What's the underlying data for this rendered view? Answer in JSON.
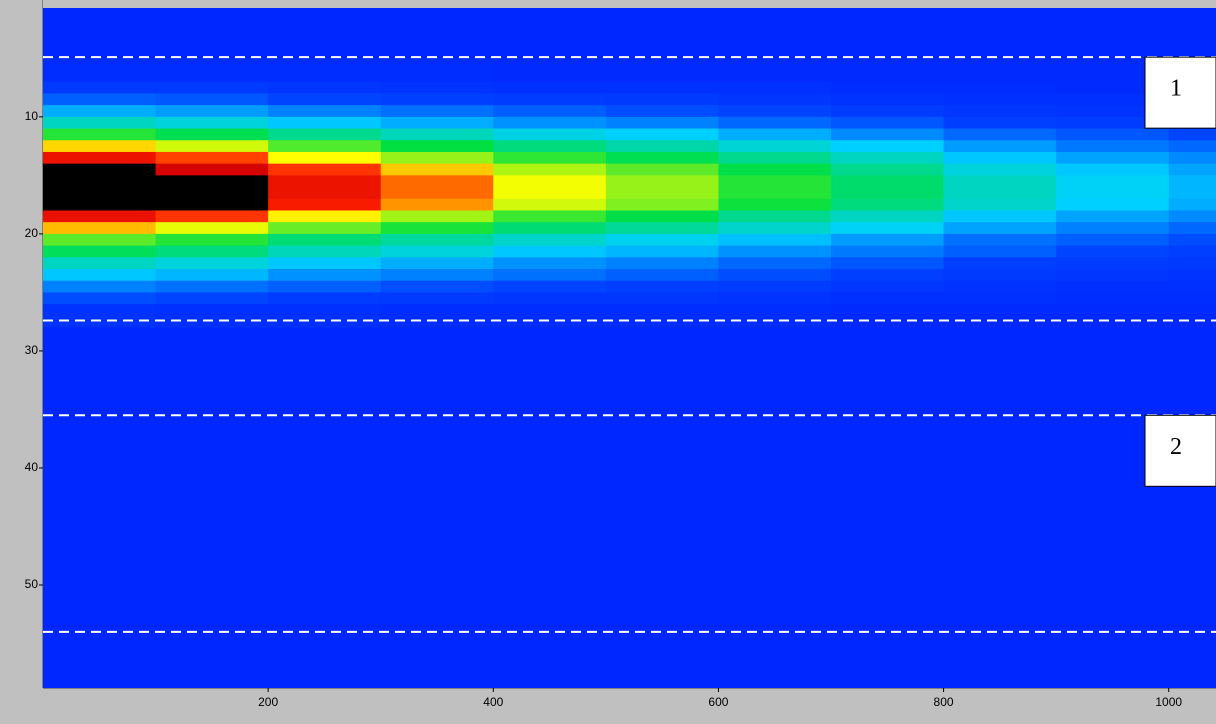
{
  "chart_data": {
    "type": "heatmap",
    "x_bins": [
      0,
      100,
      200,
      300,
      400,
      500,
      600,
      700,
      800,
      900,
      1000,
      1042
    ],
    "y_bins": [
      0.7,
      5,
      7,
      8,
      9,
      10,
      11,
      12,
      13,
      14,
      15,
      16,
      17,
      18,
      19,
      20,
      21,
      22,
      23,
      24,
      25,
      26,
      28,
      58.8
    ],
    "z": [
      [
        8,
        8,
        8,
        8,
        8,
        8,
        8,
        8,
        8,
        8,
        8
      ],
      [
        10,
        10,
        10,
        10,
        9,
        9,
        9,
        9,
        9,
        9,
        8
      ],
      [
        14,
        14,
        13,
        12,
        11,
        11,
        11,
        10,
        10,
        9,
        9
      ],
      [
        20,
        19,
        17,
        16,
        15,
        14,
        13,
        12,
        11,
        11,
        10
      ],
      [
        29,
        27,
        24,
        22,
        20,
        18,
        17,
        15,
        13,
        12,
        12
      ],
      [
        40,
        37,
        32,
        29,
        26,
        24,
        21,
        19,
        16,
        15,
        14
      ],
      [
        58,
        53,
        46,
        41,
        36,
        33,
        29,
        25,
        21,
        19,
        17
      ],
      [
        80,
        73,
        62,
        55,
        48,
        43,
        38,
        33,
        27,
        23,
        21
      ],
      [
        100,
        91,
        77,
        68,
        59,
        53,
        46,
        40,
        32,
        28,
        25
      ],
      [
        119,
        108,
        92,
        81,
        70,
        63,
        54,
        46,
        37,
        32,
        28
      ],
      [
        130,
        118,
        100,
        88,
        76,
        68,
        58,
        50,
        40,
        34,
        30
      ],
      [
        130,
        118,
        100,
        88,
        76,
        68,
        58,
        50,
        40,
        34,
        30
      ],
      [
        125,
        114,
        96,
        85,
        73,
        66,
        56,
        48,
        39,
        33,
        29
      ],
      [
        101,
        92,
        78,
        69,
        60,
        54,
        46,
        40,
        32,
        28,
        25
      ],
      [
        82,
        75,
        64,
        57,
        49,
        45,
        39,
        34,
        28,
        24,
        21
      ],
      [
        63,
        58,
        49,
        44,
        39,
        35,
        31,
        27,
        22,
        20,
        18
      ],
      [
        52,
        48,
        41,
        37,
        32,
        30,
        26,
        23,
        20,
        17,
        16
      ],
      [
        40,
        37,
        32,
        29,
        26,
        24,
        21,
        19,
        16,
        15,
        14
      ],
      [
        32,
        30,
        26,
        24,
        22,
        20,
        18,
        16,
        14,
        13,
        12
      ],
      [
        24,
        22,
        20,
        18,
        17,
        16,
        15,
        13,
        12,
        11,
        11
      ],
      [
        18,
        17,
        15,
        14,
        13,
        13,
        12,
        11,
        11,
        10,
        10
      ],
      [
        12,
        11,
        11,
        10,
        10,
        10,
        10,
        9,
        9,
        9,
        9
      ],
      [
        8,
        8,
        8,
        8,
        8,
        8,
        8,
        8,
        8,
        8,
        8
      ]
    ],
    "zlim": [
      0,
      110
    ],
    "xlim": [
      0,
      1042
    ],
    "ylim": [
      0.7,
      58.8
    ],
    "y_inverted": true,
    "xticks": [
      200,
      400,
      600,
      800,
      1000
    ],
    "yticks": [
      10,
      20,
      30,
      40,
      50
    ],
    "hlines": [
      4.9,
      27.4,
      35.5,
      54.0
    ],
    "annotations": [
      "1",
      "2"
    ]
  }
}
